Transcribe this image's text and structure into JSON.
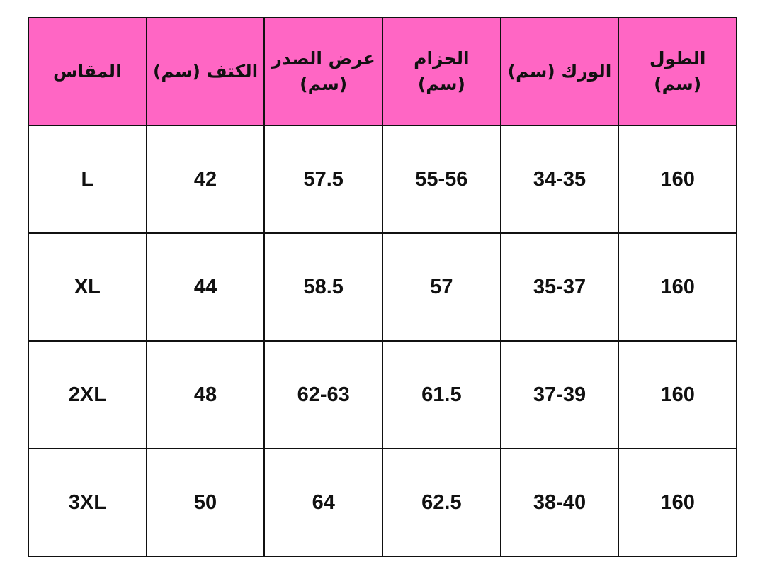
{
  "colors": {
    "header_bg": "#ff66c4",
    "border": "#111111"
  },
  "size_chart": {
    "headers": [
      "الطول (سم)",
      "الورك (سم)",
      "الحزام (سم)",
      "عرض الصدر (سم)",
      "الكتف (سم)",
      "المقاس"
    ],
    "rows": [
      [
        "160",
        "34-35",
        "55-56",
        "57.5",
        "42",
        "L"
      ],
      [
        "160",
        "35-37",
        "57",
        "58.5",
        "44",
        "XL"
      ],
      [
        "160",
        "37-39",
        "61.5",
        "62-63",
        "48",
        "2XL"
      ],
      [
        "160",
        "38-40",
        "62.5",
        "64",
        "50",
        "3XL"
      ]
    ]
  }
}
